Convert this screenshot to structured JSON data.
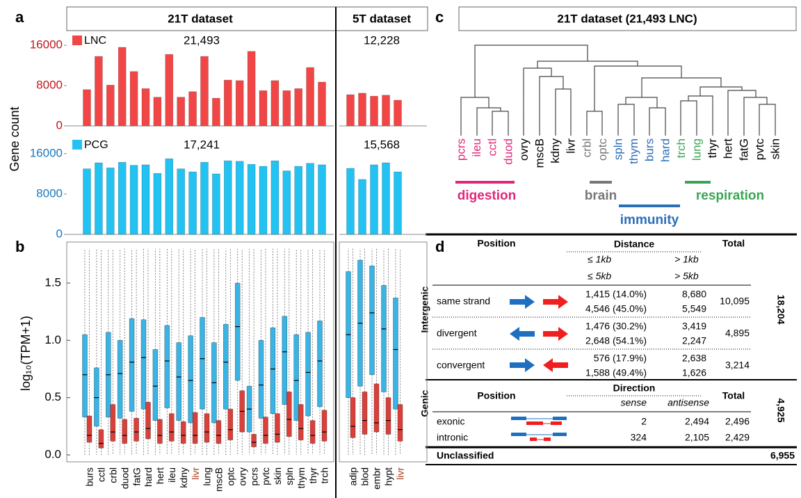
{
  "panel_labels": [
    "a",
    "b",
    "c",
    "d"
  ],
  "datasets": [
    {
      "name": "21T dataset",
      "categories": [
        "burs",
        "cctl",
        "crbl",
        "duod",
        "fatG",
        "hard",
        "hert",
        "ileu",
        "kdny",
        "livr",
        "lung",
        "mscB",
        "optc",
        "ovry",
        "pcrs",
        "pvtc",
        "skin",
        "spln",
        "thym",
        "thyr",
        "trch"
      ]
    },
    {
      "name": "5T dataset",
      "categories": [
        "adip",
        "blod",
        "embr",
        "hypt",
        "livr"
      ]
    }
  ],
  "highlight": {
    "category": "livr",
    "color": "#a3401c"
  },
  "chart_data": [
    {
      "type": "bar",
      "ylabel": "Gene count",
      "series": [
        {
          "name": "LNC",
          "color": "#f24646",
          "axis_color": "#c0161c",
          "ylim": [
            0,
            17400
          ],
          "yticks": [
            0,
            8000,
            16000
          ],
          "values": [
            [
              7200,
              13800,
              8100,
              15600,
              10800,
              7400,
              5700,
              14200,
              5700,
              6800,
              13800,
              5500,
              9100,
              9000,
              14800,
              7000,
              9000,
              7000,
              7400,
              11600,
              8700
            ],
            [
              6200,
              6500,
              5900,
              6100,
              5100
            ]
          ],
          "totals": [
            "21,493",
            "12,228"
          ]
        },
        {
          "name": "PCG",
          "color": "#22c2f2",
          "axis_color": "#1a78c0",
          "ylim": [
            0,
            18200
          ],
          "yticks": [
            0,
            8000,
            16000
          ],
          "values": [
            [
              13000,
              14200,
              13200,
              14300,
              13700,
              13800,
              12100,
              15000,
              13000,
              12400,
              14300,
              12000,
              14600,
              14500,
              13900,
              13500,
              14600,
              12600,
              13500,
              14100,
              13800
            ],
            [
              13100,
              10900,
              13800,
              14200,
              12400
            ]
          ],
          "totals": [
            "17,241",
            "15,568"
          ]
        }
      ]
    },
    {
      "type": "box",
      "ylabel": "log₁₀(TPM+1)",
      "ylim": [
        0,
        1.834
      ],
      "yticks": [
        {
          "value": 0,
          "label": "0.0"
        },
        0.5,
        {
          "value": 1,
          "label": "1.0"
        },
        1.5
      ],
      "series": [
        {
          "color": "#3ab4e4",
          "q1": [
            [
              0.33,
              0.25,
              0.33,
              0.32,
              0.38,
              0.4,
              0.3,
              0.41,
              0.3,
              0.28,
              0.4,
              0.28,
              0.4,
              0.65,
              0.2,
              0.32,
              0.36,
              0.44,
              0.3,
              0.34,
              0.42
            ],
            [
              0.5,
              0.6,
              0.7,
              0.55,
              0.4
            ]
          ],
          "median": [
            [
              0.7,
              0.5,
              0.7,
              0.71,
              0.81,
              0.85,
              0.6,
              0.82,
              0.68,
              0.65,
              0.84,
              0.63,
              0.81,
              1.12,
              0.4,
              0.61,
              0.75,
              0.9,
              0.65,
              0.72,
              0.82
            ],
            [
              1.05,
              1.15,
              1.24,
              1.1,
              0.92
            ]
          ],
          "q3": [
            [
              1.05,
              0.76,
              1.07,
              1.0,
              1.19,
              1.18,
              0.92,
              1.13,
              0.98,
              1.04,
              1.2,
              0.98,
              1.14,
              1.5,
              0.6,
              1.0,
              1.11,
              1.21,
              1.05,
              1.07,
              1.17
            ],
            [
              1.6,
              1.7,
              1.65,
              1.48,
              1.37
            ]
          ],
          "whisker_low": [
            [
              0,
              0,
              0,
              0,
              0,
              0,
              0,
              0,
              0,
              0,
              0,
              0,
              0,
              0,
              0,
              0,
              0,
              0,
              0,
              0,
              0
            ],
            [
              0,
              0,
              0,
              0,
              0
            ]
          ],
          "whisker_high": [
            [
              1.8,
              1.8,
              1.8,
              1.8,
              1.8,
              1.8,
              1.8,
              1.8,
              1.8,
              1.8,
              1.8,
              1.8,
              1.8,
              1.8,
              1.8,
              1.8,
              1.8,
              1.8,
              1.8,
              1.8,
              1.8
            ],
            [
              1.8,
              1.8,
              1.8,
              1.8,
              1.8
            ]
          ]
        },
        {
          "color": "#d9403a",
          "q1": [
            [
              0.11,
              0.06,
              0.12,
              0.1,
              0.12,
              0.14,
              0.1,
              0.12,
              0.1,
              0.1,
              0.11,
              0.1,
              0.13,
              0.2,
              0.07,
              0.1,
              0.11,
              0.16,
              0.13,
              0.1,
              0.12
            ],
            [
              0.15,
              0.18,
              0.2,
              0.18,
              0.12
            ]
          ],
          "median": [
            [
              0.17,
              0.1,
              0.2,
              0.17,
              0.2,
              0.23,
              0.17,
              0.2,
              0.17,
              0.17,
              0.2,
              0.17,
              0.22,
              0.38,
              0.11,
              0.17,
              0.18,
              0.31,
              0.23,
              0.17,
              0.2
            ],
            [
              0.25,
              0.3,
              0.28,
              0.3,
              0.22
            ]
          ],
          "q3": [
            [
              0.34,
              0.22,
              0.44,
              0.31,
              0.32,
              0.46,
              0.31,
              0.36,
              0.29,
              0.37,
              0.36,
              0.3,
              0.4,
              0.56,
              0.18,
              0.33,
              0.36,
              0.55,
              0.44,
              0.3,
              0.39
            ],
            [
              0.5,
              0.55,
              0.62,
              0.5,
              0.44
            ]
          ],
          "whisker_low": [
            [
              0,
              0,
              0,
              0,
              0,
              0,
              0,
              0,
              0,
              0,
              0,
              0,
              0,
              0,
              0,
              0,
              0,
              0,
              0,
              0,
              0
            ],
            [
              0,
              0,
              0,
              0,
              0
            ]
          ],
          "whisker_high": [
            [
              1.8,
              1.8,
              1.8,
              1.8,
              1.8,
              1.8,
              1.8,
              1.8,
              1.8,
              1.8,
              1.8,
              1.8,
              1.8,
              1.8,
              1.8,
              1.8,
              1.8,
              1.8,
              1.8,
              1.8,
              1.8
            ],
            [
              1.8,
              1.8,
              1.8,
              1.8,
              1.8
            ]
          ]
        }
      ]
    }
  ],
  "dendrogram": {
    "title": "21T dataset (21,493 LNC)",
    "leaves": [
      {
        "label": "pcrs",
        "color": "#e0287a"
      },
      {
        "label": "ileu",
        "color": "#e0287a"
      },
      {
        "label": "cctl",
        "color": "#e0287a"
      },
      {
        "label": "duod",
        "color": "#e0287a"
      },
      {
        "label": "ovry",
        "color": "#000000"
      },
      {
        "label": "mscB",
        "color": "#000000"
      },
      {
        "label": "kdny",
        "color": "#000000"
      },
      {
        "label": "livr",
        "color": "#000000"
      },
      {
        "label": "crbl",
        "color": "#777777"
      },
      {
        "label": "optc",
        "color": "#777777"
      },
      {
        "label": "spln",
        "color": "#2a6ebb"
      },
      {
        "label": "thym",
        "color": "#2a6ebb"
      },
      {
        "label": "burs",
        "color": "#2a6ebb"
      },
      {
        "label": "hard",
        "color": "#2a6ebb"
      },
      {
        "label": "trch",
        "color": "#3aa655"
      },
      {
        "label": "lung",
        "color": "#3aa655"
      },
      {
        "label": "thyr",
        "color": "#000000"
      },
      {
        "label": "hert",
        "color": "#000000"
      },
      {
        "label": "fatG",
        "color": "#000000"
      },
      {
        "label": "pvtc",
        "color": "#000000"
      },
      {
        "label": "skin",
        "color": "#000000"
      }
    ],
    "groups": [
      {
        "label": "digestion",
        "color": "#e0287a"
      },
      {
        "label": "brain",
        "color": "#777777"
      },
      {
        "label": "immunity",
        "color": "#2a6ebb"
      },
      {
        "label": "respiration",
        "color": "#3aa655"
      }
    ]
  },
  "table": {
    "intergenic": {
      "label": "Intergenic",
      "total": "18,204",
      "header": {
        "position": "Position",
        "distance": "Distance",
        "total": "Total",
        "sub": [
          "≤ 1kb",
          "> 1kb",
          "≤ 5kb",
          "> 5kb"
        ]
      },
      "rows": [
        {
          "label": "same strand",
          "cells": [
            "1,415 (14.0%)",
            "8,680",
            "4,546 (45.0%)",
            "5,549"
          ],
          "total": "10,095"
        },
        {
          "label": "divergent",
          "cells": [
            "1,476 (30.2%)",
            "3,419",
            "2,648 (54.1%)",
            "2,247"
          ],
          "total": "4,895"
        },
        {
          "label": "convergent",
          "cells": [
            "576 (17.9%)",
            "2,638",
            "1,588 (49.4%)",
            "1,626"
          ],
          "total": "3,214"
        }
      ]
    },
    "genic": {
      "label": "Genic",
      "total": "4,925",
      "header": {
        "position": "Position",
        "direction": "Direction",
        "total": "Total",
        "sub": [
          "sense",
          "antisense"
        ]
      },
      "rows": [
        {
          "label": "exonic",
          "cells": [
            "2",
            "2,494"
          ],
          "total": "2,496"
        },
        {
          "label": "intronic",
          "cells": [
            "324",
            "2,105"
          ],
          "total": "2,429"
        }
      ]
    },
    "unclassified": {
      "label": "Unclassified",
      "total": "6,955"
    }
  }
}
